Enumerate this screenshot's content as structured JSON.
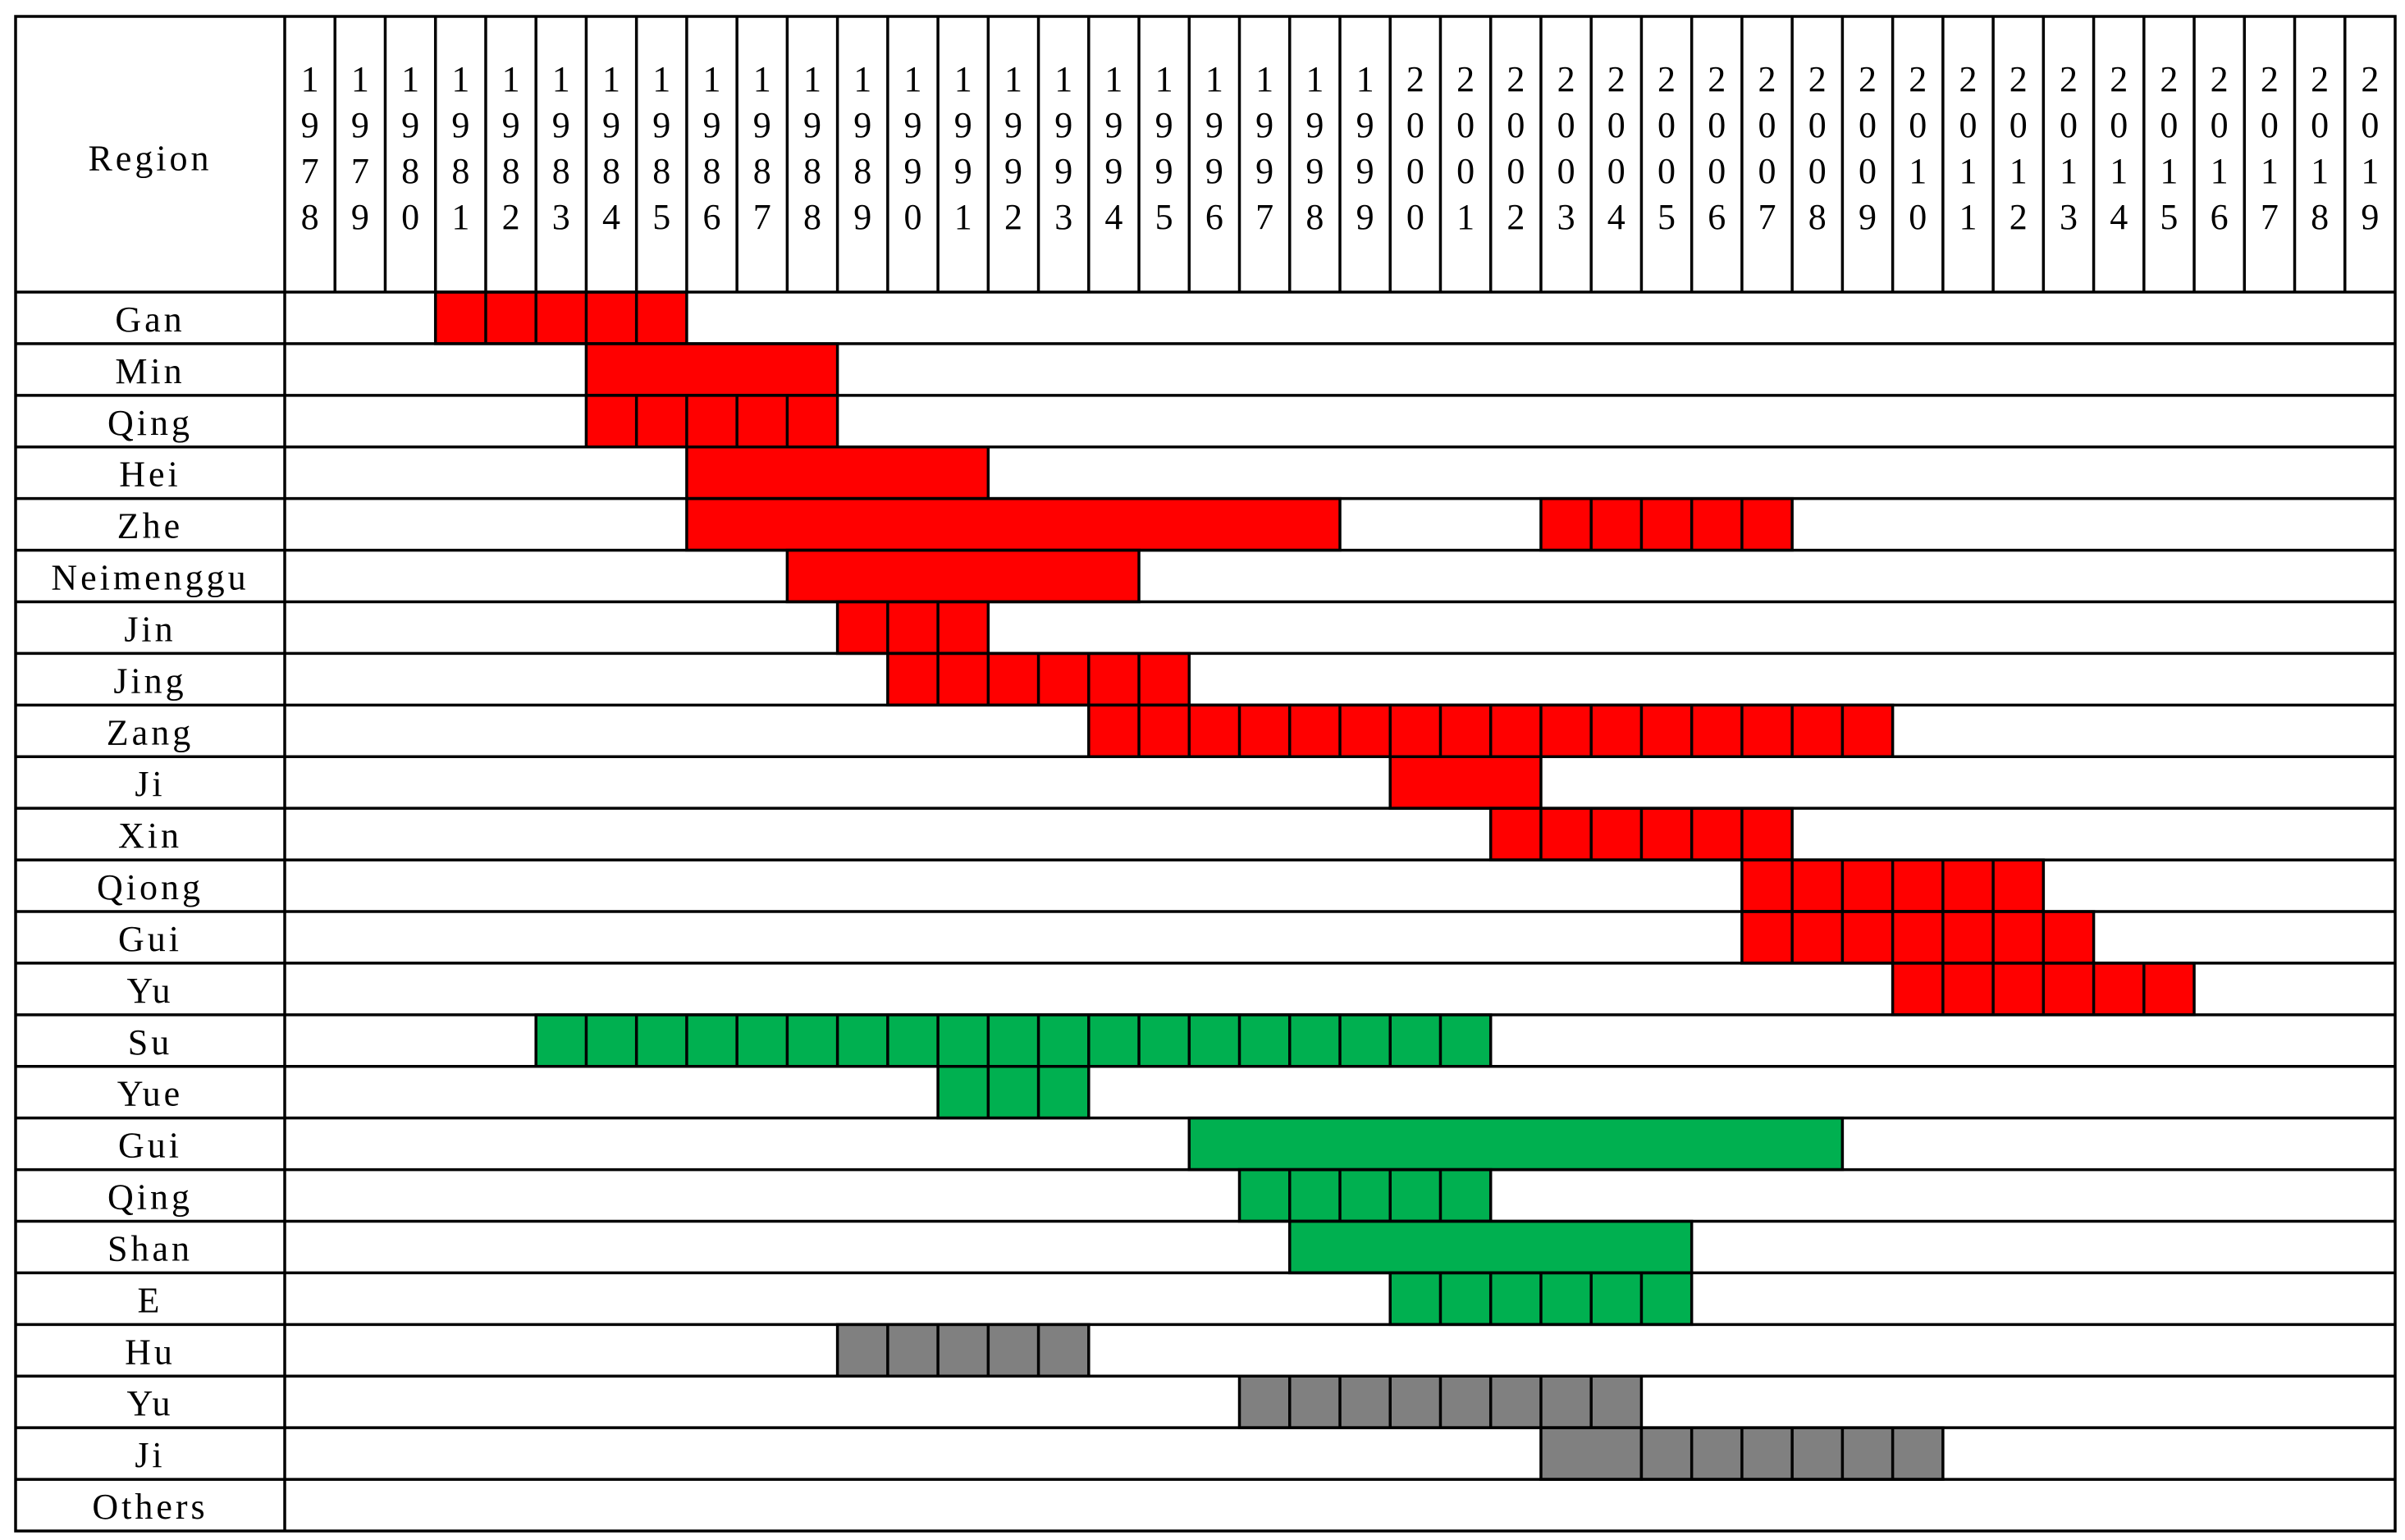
{
  "header": "Region",
  "years": [
    "1978",
    "1979",
    "1980",
    "1981",
    "1982",
    "1983",
    "1984",
    "1985",
    "1986",
    "1987",
    "1988",
    "1989",
    "1990",
    "1991",
    "1992",
    "1993",
    "1994",
    "1995",
    "1996",
    "1997",
    "1998",
    "1999",
    "2000",
    "2001",
    "2002",
    "2003",
    "2004",
    "2005",
    "2006",
    "2007",
    "2008",
    "2009",
    "2010",
    "2011",
    "2012",
    "2013",
    "2014",
    "2015",
    "2016",
    "2017",
    "2018",
    "2019"
  ],
  "rows": [
    {
      "label": "Gan",
      "segments": [
        {
          "start": 1981,
          "end": 1985,
          "color": "#ff0000",
          "cells": true
        }
      ]
    },
    {
      "label": "Min",
      "segments": [
        {
          "start": 1984,
          "end": 1988,
          "color": "#ff0000",
          "cells": false
        }
      ]
    },
    {
      "label": "Qing",
      "segments": [
        {
          "start": 1984,
          "end": 1988,
          "color": "#ff0000",
          "cells": true
        }
      ]
    },
    {
      "label": "Hei",
      "segments": [
        {
          "start": 1986,
          "end": 1991,
          "color": "#ff0000",
          "cells": false
        }
      ]
    },
    {
      "label": "Zhe",
      "segments": [
        {
          "start": 1986,
          "end": 1998,
          "color": "#ff0000",
          "cells": false
        },
        {
          "start": 2003,
          "end": 2007,
          "color": "#ff0000",
          "cells": true
        }
      ]
    },
    {
      "label": "Neimenggu",
      "segments": [
        {
          "start": 1988,
          "end": 1994,
          "color": "#ff0000",
          "cells": false
        }
      ]
    },
    {
      "label": "Jin",
      "segments": [
        {
          "start": 1989,
          "end": 1991,
          "color": "#ff0000",
          "cells": true
        }
      ]
    },
    {
      "label": "Jing",
      "segments": [
        {
          "start": 1990,
          "end": 1995,
          "color": "#ff0000",
          "cells": true
        }
      ]
    },
    {
      "label": "Zang",
      "segments": [
        {
          "start": 1994,
          "end": 2009,
          "color": "#ff0000",
          "cells": true
        }
      ]
    },
    {
      "label": "Ji",
      "segments": [
        {
          "start": 2000,
          "end": 2002,
          "color": "#ff0000",
          "cells": false
        }
      ]
    },
    {
      "label": "Xin",
      "segments": [
        {
          "start": 2002,
          "end": 2007,
          "color": "#ff0000",
          "cells": true
        }
      ]
    },
    {
      "label": "Qiong",
      "segments": [
        {
          "start": 2007,
          "end": 2012,
          "color": "#ff0000",
          "cells": true
        }
      ]
    },
    {
      "label": "Gui",
      "segments": [
        {
          "start": 2007,
          "end": 2013,
          "color": "#ff0000",
          "cells": true
        }
      ]
    },
    {
      "label": "Yu",
      "segments": [
        {
          "start": 2010,
          "end": 2015,
          "color": "#ff0000",
          "cells": true
        }
      ]
    },
    {
      "label": "Su",
      "segments": [
        {
          "start": 1983,
          "end": 2001,
          "color": "#00b050",
          "cells": true
        }
      ]
    },
    {
      "label": "Yue",
      "segments": [
        {
          "start": 1991,
          "end": 1993,
          "color": "#00b050",
          "cells": true
        }
      ]
    },
    {
      "label": "Gui",
      "segments": [
        {
          "start": 1996,
          "end": 2008,
          "color": "#00b050",
          "cells": false
        }
      ]
    },
    {
      "label": "Qing",
      "segments": [
        {
          "start": 1997,
          "end": 2001,
          "color": "#00b050",
          "cells": true
        }
      ]
    },
    {
      "label": "Shan",
      "segments": [
        {
          "start": 1998,
          "end": 2005,
          "color": "#00b050",
          "cells": false
        }
      ]
    },
    {
      "label": "E",
      "segments": [
        {
          "start": 2000,
          "end": 2005,
          "color": "#00b050",
          "cells": true
        }
      ]
    },
    {
      "label": "Hu",
      "segments": [
        {
          "start": 1989,
          "end": 1993,
          "color": "#808080",
          "cells": true
        }
      ]
    },
    {
      "label": "Yu",
      "segments": [
        {
          "start": 1997,
          "end": 2004,
          "color": "#808080",
          "cells": true
        }
      ]
    },
    {
      "label": "Ji",
      "segments": [
        {
          "start": 2003,
          "end": 2004,
          "color": "#808080",
          "cells": false
        },
        {
          "start": 2005,
          "end": 2010,
          "color": "#808080",
          "cells": true
        }
      ]
    },
    {
      "label": "Others",
      "segments": []
    }
  ]
}
